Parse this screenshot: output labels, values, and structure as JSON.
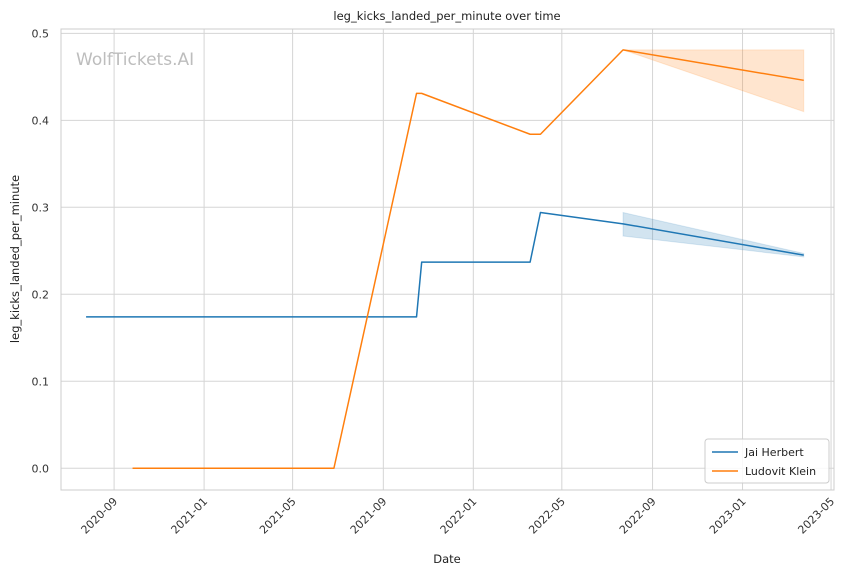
{
  "chart_data": {
    "type": "line",
    "title": "leg_kicks_landed_per_minute over time",
    "xlabel": "Date",
    "ylabel": "leg_kicks_landed_per_minute",
    "watermark": "WolfTickets.AI",
    "grid": true,
    "legend_position": "lower-right",
    "x_type": "date",
    "xlim": [
      "2020-06-21",
      "2023-05-05"
    ],
    "ylim": [
      -0.025,
      0.505
    ],
    "x_ticks": [
      "2020-09-01",
      "2021-01-01",
      "2021-05-01",
      "2021-09-01",
      "2022-01-01",
      "2022-05-01",
      "2022-09-01",
      "2023-01-01",
      "2023-05-01"
    ],
    "x_tick_labels": [
      "2020-09",
      "2021-01",
      "2021-05",
      "2021-09",
      "2022-01",
      "2022-05",
      "2022-09",
      "2023-01",
      "2023-05"
    ],
    "y_ticks": [
      0.0,
      0.1,
      0.2,
      0.3,
      0.4,
      0.5
    ],
    "y_tick_labels": [
      "0.0",
      "0.1",
      "0.2",
      "0.3",
      "0.4",
      "0.5"
    ],
    "series": [
      {
        "name": "Jai Herbert",
        "color": "#1f77b4",
        "x": [
          "2020-07-25",
          "2021-10-16",
          "2021-10-23",
          "2022-03-19",
          "2022-04-02",
          "2022-07-23",
          "2023-03-25"
        ],
        "y": [
          0.174,
          0.174,
          0.237,
          0.237,
          0.294,
          0.281,
          0.245
        ],
        "band": {
          "x": [
            "2022-07-23",
            "2023-03-25"
          ],
          "lower": [
            0.267,
            0.243
          ],
          "upper": [
            0.294,
            0.247
          ]
        }
      },
      {
        "name": "Ludovit Klein",
        "color": "#ff7f0e",
        "x": [
          "2020-09-26",
          "2021-06-26",
          "2021-10-16",
          "2021-10-23",
          "2022-03-19",
          "2022-04-02",
          "2022-07-23",
          "2023-03-25"
        ],
        "y": [
          0.0,
          0.0,
          0.431,
          0.431,
          0.384,
          0.384,
          0.481,
          0.446
        ],
        "band": {
          "x": [
            "2022-07-23",
            "2023-03-25"
          ],
          "lower": [
            0.481,
            0.41
          ],
          "upper": [
            0.481,
            0.481
          ]
        }
      }
    ]
  }
}
